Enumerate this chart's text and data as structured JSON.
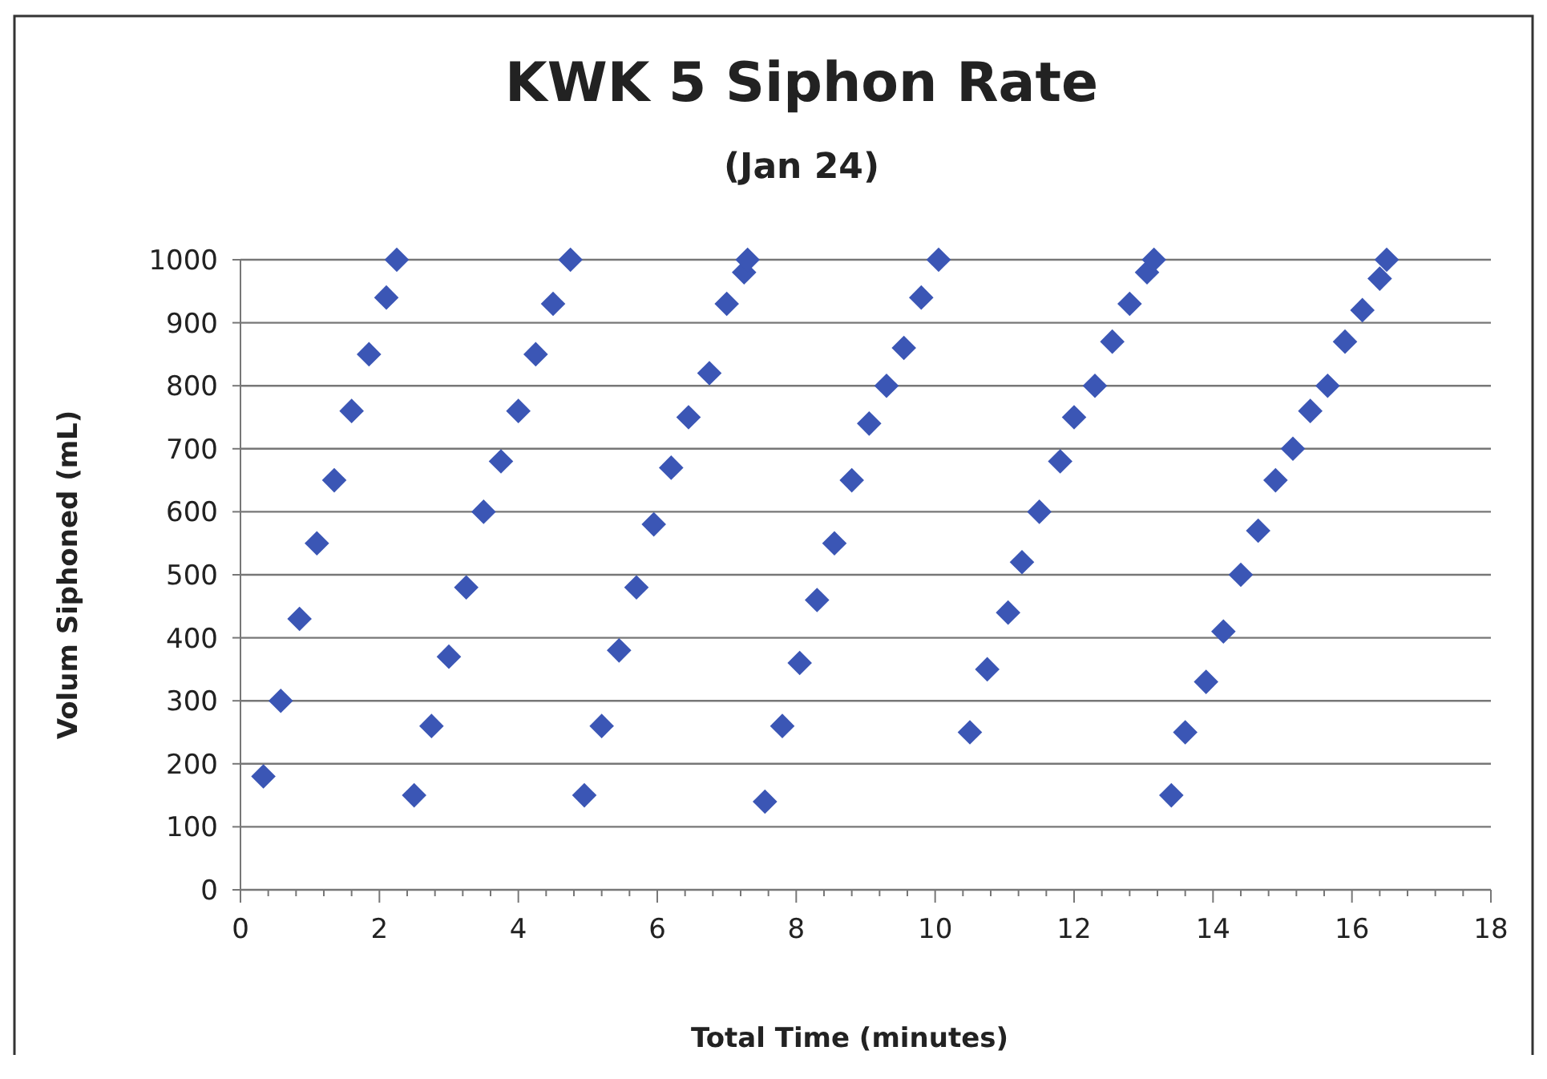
{
  "chart_data": {
    "type": "scatter",
    "title": "KWK 5 Siphon Rate",
    "subtitle": "(Jan 24)",
    "xlabel": "Total Time (minutes)",
    "ylabel": "Volum Siphoned (mL)",
    "xlim": [
      0,
      18
    ],
    "ylim": [
      0,
      1000
    ],
    "xticks": [
      0,
      {
        "value": 0.4,
        "label": null
      },
      {
        "value": 0.8,
        "label": null
      },
      {
        "value": 1.2,
        "label": null
      },
      {
        "value": 1.6,
        "label": null
      },
      2,
      {
        "value": 2.4,
        "label": null
      },
      {
        "value": 2.8,
        "label": null
      },
      {
        "value": 3.2,
        "label": null
      },
      {
        "value": 3.6,
        "label": null
      },
      4,
      {
        "value": 4.4,
        "label": null
      },
      {
        "value": 4.8,
        "label": null
      },
      {
        "value": 5.2,
        "label": null
      },
      {
        "value": 5.6,
        "label": null
      },
      6,
      {
        "value": 6.4,
        "label": null
      },
      {
        "value": 6.8,
        "label": null
      },
      {
        "value": 7.2,
        "label": null
      },
      {
        "value": 7.6,
        "label": null
      },
      8,
      {
        "value": 8.4,
        "label": null
      },
      {
        "value": 8.8,
        "label": null
      },
      {
        "value": 9.2,
        "label": null
      },
      {
        "value": 9.6,
        "label": null
      },
      10,
      {
        "value": 10.4,
        "label": null
      },
      {
        "value": 10.8,
        "label": null
      },
      {
        "value": 11.2,
        "label": null
      },
      {
        "value": 11.6,
        "label": null
      },
      12,
      {
        "value": 12.4,
        "label": null
      },
      {
        "value": 12.8,
        "label": null
      },
      {
        "value": 13.2,
        "label": null
      },
      {
        "value": 13.6,
        "label": null
      },
      14,
      {
        "value": 14.4,
        "label": null
      },
      {
        "value": 14.8,
        "label": null
      },
      {
        "value": 15.2,
        "label": null
      },
      {
        "value": 15.6,
        "label": null
      },
      16,
      {
        "value": 16.4,
        "label": null
      },
      {
        "value": 16.8,
        "label": null
      },
      {
        "value": 17.2,
        "label": null
      },
      {
        "value": 17.6,
        "label": null
      },
      18
    ],
    "yticks": [
      0,
      100,
      200,
      300,
      400,
      500,
      600,
      700,
      800,
      900,
      1000
    ],
    "grid": "y",
    "marker": "diamond",
    "series": [
      {
        "color": "#3b56b5",
        "x": [
          0.33,
          0.58,
          0.85,
          1.1,
          1.35,
          1.6,
          1.85,
          2.1,
          2.25,
          2.5,
          2.75,
          3.0,
          3.25,
          3.5,
          3.75,
          4.0,
          4.25,
          4.5,
          4.75,
          4.95,
          5.2,
          5.45,
          5.7,
          5.95,
          6.2,
          6.45,
          6.75,
          7.0,
          7.25,
          7.3,
          7.55,
          7.8,
          8.05,
          8.3,
          8.55,
          8.8,
          9.05,
          9.3,
          9.55,
          9.8,
          10.05,
          10.5,
          10.75,
          11.05,
          11.25,
          11.5,
          11.8,
          12.0,
          12.3,
          12.55,
          12.8,
          13.05,
          13.15,
          13.4,
          13.6,
          13.9,
          14.15,
          14.4,
          14.65,
          14.9,
          15.15,
          15.4,
          15.65,
          15.9,
          16.15,
          16.4,
          16.5
        ],
        "values": [
          180,
          300,
          430,
          550,
          650,
          760,
          850,
          940,
          1000,
          150,
          260,
          370,
          480,
          600,
          680,
          760,
          850,
          930,
          1000,
          150,
          260,
          380,
          480,
          580,
          670,
          750,
          820,
          930,
          980,
          1000,
          140,
          260,
          360,
          460,
          550,
          650,
          740,
          800,
          860,
          940,
          1000,
          250,
          350,
          440,
          520,
          600,
          680,
          750,
          800,
          870,
          930,
          980,
          1000,
          150,
          250,
          330,
          410,
          500,
          570,
          650,
          700,
          760,
          800,
          870,
          920,
          970,
          1000
        ]
      }
    ]
  }
}
